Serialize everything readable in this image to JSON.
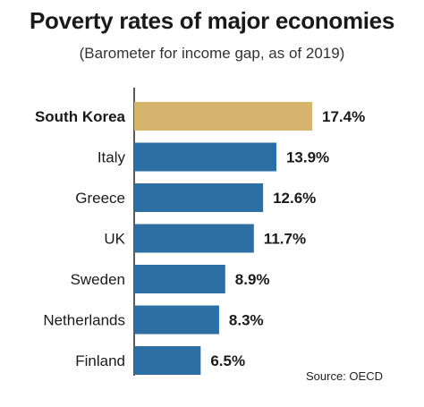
{
  "chart_data": {
    "type": "bar",
    "orientation": "horizontal",
    "title": "Poverty rates of major economies",
    "subtitle": "(Barometer for income gap, as of 2019)",
    "categories": [
      "South Korea",
      "Italy",
      "Greece",
      "UK",
      "Sweden",
      "Netherlands",
      "Finland"
    ],
    "values": [
      17.4,
      13.9,
      12.6,
      11.7,
      8.9,
      8.3,
      6.5
    ],
    "value_labels": [
      "17.4%",
      "13.9%",
      "12.6%",
      "11.7%",
      "8.9%",
      "8.3%",
      "6.5%"
    ],
    "highlight": "South Korea",
    "xlim": [
      0,
      17.4
    ],
    "grid": false,
    "colors": {
      "default": "#2e6fa3",
      "highlight": "#d6b46e"
    }
  },
  "source": "Source: OECD"
}
